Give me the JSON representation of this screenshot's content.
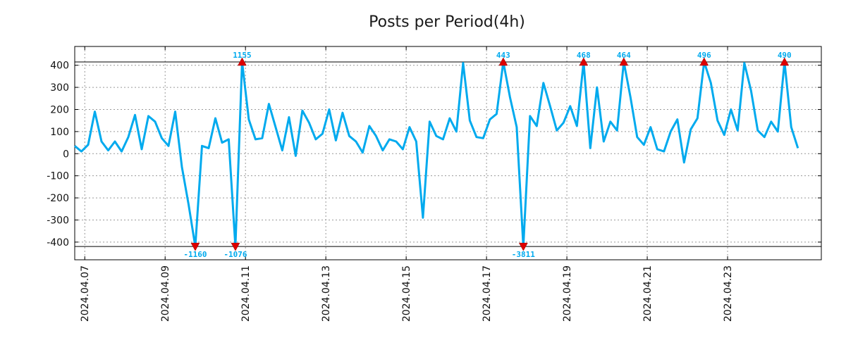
{
  "chart_data": {
    "type": "line",
    "title": "Posts per Period(4h)",
    "xlabel": "",
    "ylabel": "",
    "ylim": [
      -480,
      485
    ],
    "grid": true,
    "clip_limits": [
      415,
      -420
    ],
    "x_range": [
      "2024.04.06 18:00",
      "2024.04.25 08:00"
    ],
    "x_ticks": [
      "2024.04.07",
      "2024.04.09",
      "2024.04.11",
      "2024.04.13",
      "2024.04.15",
      "2024.04.17",
      "2024.04.19",
      "2024.04.21",
      "2024.04.23"
    ],
    "y_ticks": [
      400,
      300,
      200,
      100,
      0,
      -100,
      -200,
      -300,
      -400
    ],
    "y_tick_labels": [
      "400",
      "300",
      "200",
      "100",
      "0",
      "-100",
      "-200",
      "-300",
      "-400"
    ],
    "series": [
      {
        "name": "Posts per Period(4h)",
        "color": "#00aaee",
        "start": "2024.04.06 18:00",
        "step_hours": 4,
        "values": [
          35,
          10,
          40,
          190,
          55,
          15,
          55,
          10,
          75,
          175,
          20,
          170,
          145,
          70,
          35,
          190,
          -60,
          -230,
          -420,
          35,
          25,
          160,
          50,
          65,
          -420,
          415,
          155,
          65,
          70,
          225,
          120,
          15,
          165,
          -10,
          195,
          140,
          65,
          90,
          200,
          60,
          185,
          80,
          55,
          5,
          125,
          80,
          15,
          65,
          55,
          20,
          120,
          55,
          -290,
          145,
          80,
          65,
          160,
          100,
          410,
          150,
          75,
          70,
          155,
          180,
          415,
          255,
          120,
          -420,
          170,
          125,
          320,
          215,
          105,
          140,
          215,
          125,
          415,
          25,
          300,
          55,
          145,
          105,
          415,
          255,
          75,
          40,
          120,
          20,
          10,
          100,
          155,
          -40,
          110,
          160,
          415,
          320,
          150,
          85,
          200,
          105,
          410,
          285,
          105,
          75,
          145,
          100,
          415,
          120,
          25
        ]
      }
    ],
    "markers": [
      {
        "label": "1155",
        "index": 25,
        "kind": "max"
      },
      {
        "label": "443",
        "index": 64,
        "kind": "max"
      },
      {
        "label": "468",
        "index": 76,
        "kind": "max"
      },
      {
        "label": "464",
        "index": 82,
        "kind": "max"
      },
      {
        "label": "496",
        "index": 94,
        "kind": "max"
      },
      {
        "label": "490",
        "index": 106,
        "kind": "max"
      },
      {
        "label": "-1160",
        "index": 18,
        "kind": "min"
      },
      {
        "label": "-1076",
        "index": 24,
        "kind": "min"
      },
      {
        "label": "-3811",
        "index": 67,
        "kind": "min"
      }
    ],
    "marker_color": "#dd0000",
    "label_color": "#00aaee"
  }
}
